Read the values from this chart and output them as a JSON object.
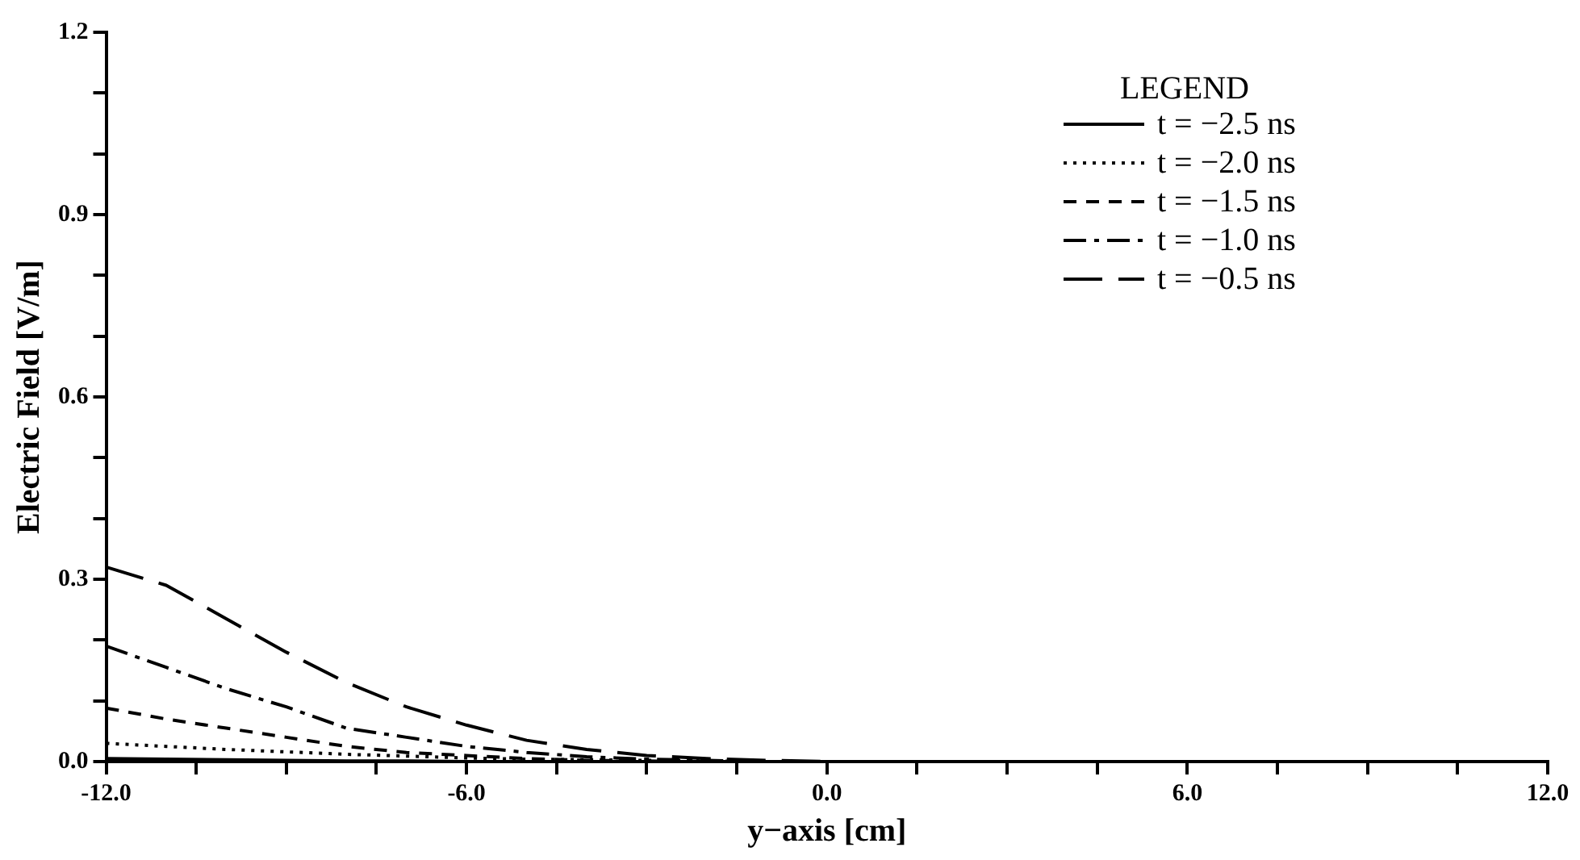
{
  "chart_data": {
    "type": "line",
    "xlabel": "y−axis [cm]",
    "ylabel": "Electric Field [V/m]",
    "legend_title": "LEGEND",
    "legend": "top right",
    "grid": false,
    "marker": "none",
    "x": [
      -12,
      -11,
      -10,
      -9,
      -8,
      -7,
      -6,
      -5,
      -4,
      -3,
      -2,
      -1,
      0,
      1,
      2,
      3,
      4,
      5,
      6,
      7,
      8,
      9,
      10,
      11,
      12
    ],
    "xlim": [
      -12,
      12
    ],
    "xticks": [
      {
        "value": -12,
        "label": "-12.0"
      },
      {
        "value": -10.5,
        "label": null
      },
      {
        "value": -9,
        "label": null
      },
      {
        "value": -7.5,
        "label": null
      },
      {
        "value": -6,
        "label": "-6.0"
      },
      {
        "value": -4.5,
        "label": null
      },
      {
        "value": -3,
        "label": null
      },
      {
        "value": -1.5,
        "label": null
      },
      {
        "value": 0,
        "label": "0.0"
      },
      {
        "value": 1.5,
        "label": null
      },
      {
        "value": 3,
        "label": null
      },
      {
        "value": 4.5,
        "label": null
      },
      {
        "value": 6,
        "label": "6.0"
      },
      {
        "value": 7.5,
        "label": null
      },
      {
        "value": 9,
        "label": null
      },
      {
        "value": 10.5,
        "label": null
      },
      {
        "value": 12,
        "label": "12.0"
      }
    ],
    "ylim": [
      0,
      1.2
    ],
    "yticks": [
      {
        "value": 0,
        "label": "0.0"
      },
      {
        "value": 0.1,
        "label": null
      },
      {
        "value": 0.2,
        "label": null
      },
      0.3,
      {
        "value": 0.4,
        "label": null
      },
      {
        "value": 0.5,
        "label": null
      },
      0.6,
      {
        "value": 0.7,
        "label": null
      },
      {
        "value": 0.8,
        "label": null
      },
      0.9,
      {
        "value": 1.0,
        "label": null
      },
      {
        "value": 1.1,
        "label": null
      },
      1.2
    ],
    "series": [
      {
        "name": "t = −2.5 ns",
        "color": "#000000",
        "line_style": "solid",
        "values": [
          0.005,
          0.004,
          0.003,
          0.002,
          0.001,
          0.001,
          0,
          0,
          0,
          0,
          0,
          0,
          0,
          0,
          0,
          0,
          0,
          0,
          0,
          0,
          0,
          0,
          0,
          0,
          0
        ]
      },
      {
        "name": "t = −2.0 ns",
        "color": "#000000",
        "line_style": "dotted",
        "values": [
          0.03,
          0.025,
          0.02,
          0.016,
          0.012,
          0.009,
          0.006,
          0.004,
          0.003,
          0.002,
          0.001,
          0,
          0,
          0,
          0,
          0,
          0,
          0,
          0,
          0,
          0,
          0,
          0,
          0,
          0
        ]
      },
      {
        "name": "t = −1.5 ns",
        "color": "#000000",
        "line_style": "dashed",
        "values": [
          0.088,
          0.07,
          0.055,
          0.04,
          0.025,
          0.015,
          0.01,
          0.005,
          0.002,
          0.001,
          0,
          0,
          0,
          0,
          0,
          0,
          0,
          0,
          0,
          0,
          0,
          0,
          0,
          0,
          0
        ]
      },
      {
        "name": "t = −1.0 ns",
        "color": "#000000",
        "line_style": "dashdot",
        "values": [
          0.19,
          0.155,
          0.12,
          0.09,
          0.055,
          0.04,
          0.025,
          0.015,
          0.008,
          0.004,
          0.002,
          0,
          0,
          0,
          0,
          0,
          0,
          0,
          0,
          0,
          0,
          0,
          0,
          0,
          0
        ]
      },
      {
        "name": "t = −0.5 ns",
        "color": "#000000",
        "line_style": "longdash",
        "values": [
          0.32,
          0.29,
          0.235,
          0.18,
          0.13,
          0.09,
          0.06,
          0.035,
          0.02,
          0.01,
          0.005,
          0.002,
          0,
          0,
          0,
          0,
          0,
          0,
          0,
          0,
          0,
          0,
          0,
          0,
          0
        ]
      }
    ]
  }
}
